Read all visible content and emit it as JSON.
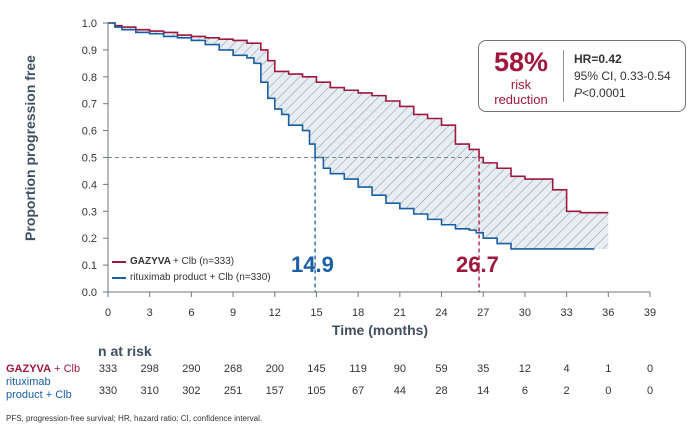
{
  "chart_data": {
    "type": "line",
    "ylabel": "Proportion progression free",
    "xlabel": "Time (months)",
    "xlim": [
      0,
      39
    ],
    "ylim": [
      0,
      1
    ],
    "x_ticks": [
      "0",
      "3",
      "6",
      "9",
      "12",
      "15",
      "18",
      "21",
      "24",
      "27",
      "30",
      "33",
      "36",
      "39"
    ],
    "y_ticks": [
      "0.0",
      "0.1",
      "0.2",
      "0.3",
      "0.4",
      "0.5",
      "0.6",
      "0.7",
      "0.8",
      "0.9",
      "1.0"
    ],
    "series": [
      {
        "name": "GAZYVA + Clb (n=333)",
        "color": "#a0173c",
        "x": [
          0,
          0.5,
          1,
          2,
          3,
          4,
          5,
          6,
          7,
          8,
          9,
          10,
          11,
          11.5,
          12,
          13,
          14,
          15,
          16,
          17,
          18,
          19,
          20,
          21,
          22,
          23,
          24,
          25,
          26,
          26.7,
          27,
          28,
          29,
          30,
          31,
          32,
          33,
          34,
          35,
          36
        ],
        "y": [
          1.0,
          0.99,
          0.985,
          0.975,
          0.97,
          0.965,
          0.955,
          0.95,
          0.945,
          0.94,
          0.935,
          0.925,
          0.9,
          0.86,
          0.82,
          0.81,
          0.8,
          0.78,
          0.76,
          0.75,
          0.74,
          0.73,
          0.71,
          0.69,
          0.66,
          0.645,
          0.62,
          0.55,
          0.53,
          0.5,
          0.48,
          0.46,
          0.43,
          0.42,
          0.42,
          0.38,
          0.3,
          0.295,
          0.295,
          0.295
        ]
      },
      {
        "name": "rituximab product + Clb (n=330)",
        "color": "#1a5ea3",
        "x": [
          0,
          0.5,
          1,
          2,
          3,
          4,
          5,
          6,
          7,
          8,
          9,
          10,
          10.5,
          11,
          11.5,
          12,
          12.5,
          13,
          14,
          14.5,
          14.9,
          15.5,
          16,
          17,
          18,
          19,
          20,
          21,
          22,
          23,
          24,
          25,
          26,
          26.5,
          27,
          28,
          29,
          30,
          31,
          32,
          33,
          34,
          35
        ],
        "y": [
          1.0,
          0.985,
          0.975,
          0.965,
          0.96,
          0.95,
          0.945,
          0.935,
          0.92,
          0.9,
          0.88,
          0.87,
          0.85,
          0.78,
          0.72,
          0.68,
          0.66,
          0.62,
          0.6,
          0.55,
          0.5,
          0.46,
          0.44,
          0.42,
          0.39,
          0.36,
          0.33,
          0.31,
          0.29,
          0.27,
          0.25,
          0.235,
          0.23,
          0.22,
          0.2,
          0.18,
          0.16,
          0.16,
          0.16,
          0.16,
          0.16,
          0.16,
          0.16
        ]
      }
    ],
    "medians": [
      {
        "label": "14.9",
        "x": 14.9,
        "y": 0.5,
        "color": "#1a5ea3"
      },
      {
        "label": "26.7",
        "x": 26.7,
        "y": 0.5,
        "color": "#a0173c"
      }
    ],
    "grid": false,
    "legend": "bottom-left",
    "hazard_ratio": {
      "percent": "58%",
      "line1": "risk",
      "line2": "reduction",
      "hr": "HR=0.42",
      "ci": "95% CI, 0.33-0.54",
      "p_prefix": "P",
      "p_rest": "<0.0001"
    },
    "legend_entries": [
      {
        "bold": "GAZYVA",
        "rest": " + Clb (n=333)",
        "color": "#a0173c"
      },
      {
        "bold": "",
        "rest": "rituximab product + Clb (n=330)",
        "color": "#1a5ea3"
      }
    ],
    "at_risk": {
      "title": "n at risk",
      "gazyva_label_bold": "GAZYVA",
      "gazyva_label_rest": " + Clb",
      "rituximab_label": "rituximab product + Clb",
      "gazyva_counts": [
        "333",
        "298",
        "290",
        "268",
        "200",
        "145",
        "119",
        "90",
        "59",
        "35",
        "12",
        "4",
        "1",
        "0"
      ],
      "rituximab_counts": [
        "330",
        "310",
        "302",
        "251",
        "157",
        "105",
        "67",
        "44",
        "28",
        "14",
        "6",
        "2",
        "0",
        "0"
      ]
    }
  },
  "footnote": "PFS, progression-free survival; HR, hazard ratio; CI, confidence interval."
}
